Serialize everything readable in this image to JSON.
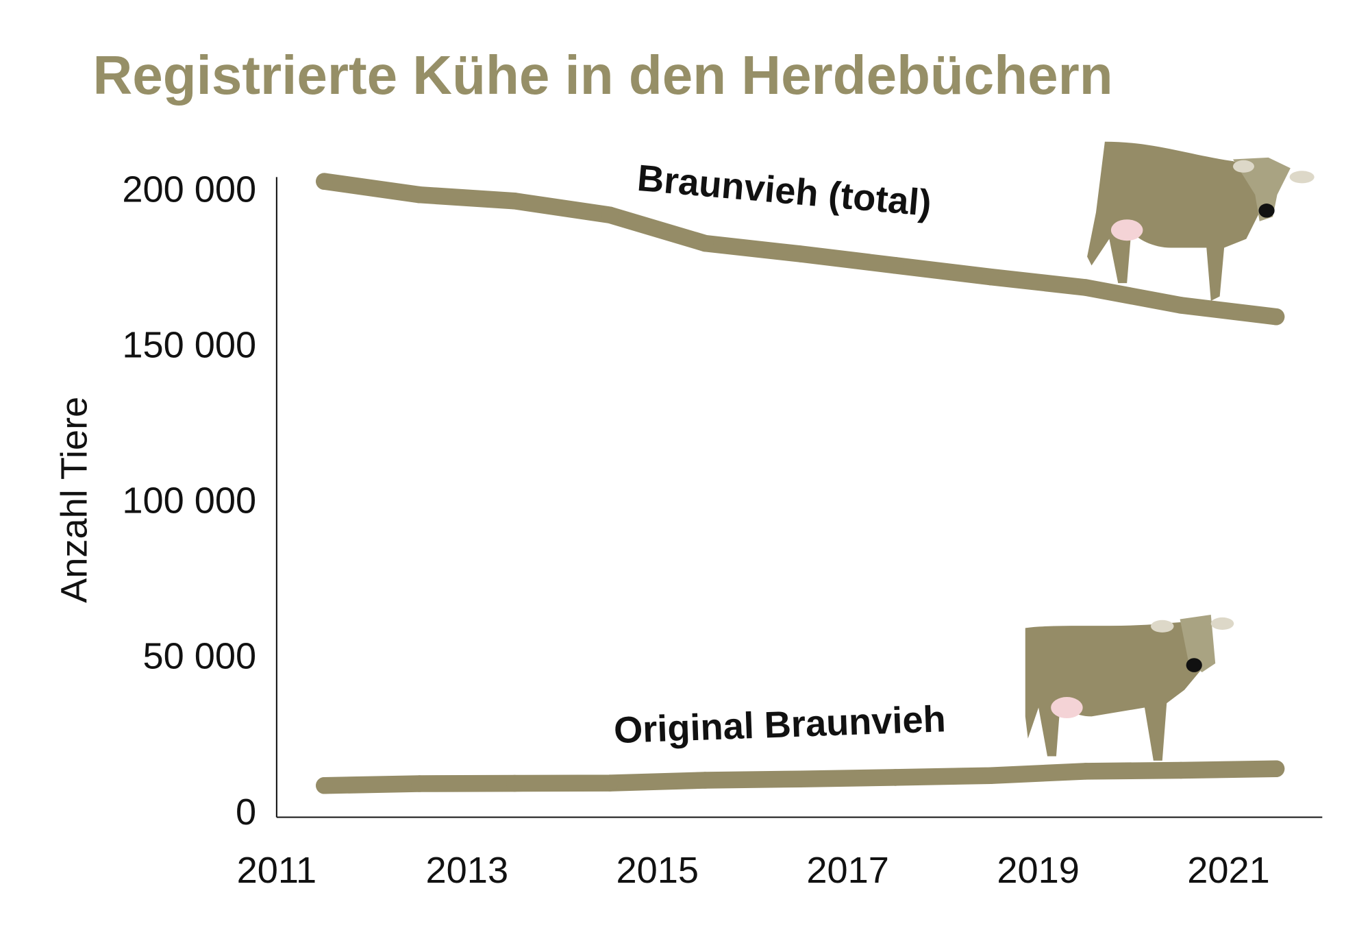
{
  "chart_data": {
    "type": "line",
    "title": "Registrierte Kühe in den Herdebüchern",
    "xlabel": "",
    "ylabel": "Anzahl Tiere",
    "x": [
      2011,
      2012,
      2013,
      2014,
      2015,
      2016,
      2017,
      2018,
      2019,
      2020,
      2021
    ],
    "x_tick_labels": [
      "2011",
      "2013",
      "2015",
      "2017",
      "2019",
      "2021"
    ],
    "y_tick_labels": [
      "0",
      "50 000",
      "100 000",
      "150 000",
      "200 000"
    ],
    "ylim": [
      0,
      200000
    ],
    "grid": false,
    "legend": "none",
    "colors": {
      "title": "#968f67",
      "line": "#958c67",
      "axis": "#111111"
    },
    "series": [
      {
        "name": "Braunvieh (total)",
        "values": [
          202300,
          198000,
          196000,
          191500,
          182400,
          179000,
          175300,
          171600,
          168200,
          162500,
          158800
        ]
      },
      {
        "name": "Original Braunvieh",
        "values": [
          8200,
          8800,
          8900,
          9000,
          9900,
          10300,
          10800,
          11400,
          12800,
          13100,
          13600
        ]
      }
    ]
  }
}
